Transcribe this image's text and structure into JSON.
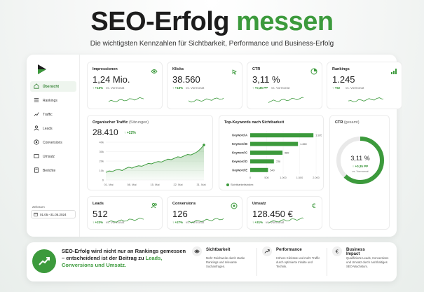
{
  "header": {
    "title_main": "SEO-Erfolg",
    "title_accent": "messen",
    "subtitle": "Die wichtigsten Kennzahlen für Sichtbarkeit, Performance und Business-Erfolg"
  },
  "colors": {
    "accent": "#3c9a3c",
    "text": "#1d1d1d"
  },
  "sidebar": {
    "items": [
      {
        "label": "Übersicht",
        "icon": "home-icon",
        "active": true
      },
      {
        "label": "Rankings",
        "icon": "list-icon",
        "active": false
      },
      {
        "label": "Traffic",
        "icon": "trend-icon",
        "active": false
      },
      {
        "label": "Leads",
        "icon": "user-icon",
        "active": false
      },
      {
        "label": "Conversions",
        "icon": "target-icon",
        "active": false
      },
      {
        "label": "Umsatz",
        "icon": "wallet-icon",
        "active": false
      },
      {
        "label": "Berichte",
        "icon": "document-icon",
        "active": false
      }
    ],
    "period_label": "Zeitraum",
    "period_value": "01.05.–31.05.2024"
  },
  "kpis": [
    {
      "label": "Impressionen",
      "value": "1,24 Mio.",
      "delta": "+15%",
      "vs": "vs. Vormonat",
      "icon": "eye-icon"
    },
    {
      "label": "Klicks",
      "value": "38.560",
      "delta": "+18%",
      "vs": "vs. Vormonat",
      "icon": "cursor-click-icon"
    },
    {
      "label": "CTR",
      "value": "3,11 %",
      "delta": "+0,35 PP",
      "vs": "vs. Vormonat",
      "icon": "pie-chart-icon"
    },
    {
      "label": "Rankings",
      "value": "1.245",
      "delta": "+92",
      "vs": "vs. Vormonat",
      "icon": "bar-chart-icon"
    }
  ],
  "traffic": {
    "title": "Organischer Traffic",
    "title_suffix": "(Sitzungen)",
    "value": "28.410",
    "delta": "+22%",
    "y_ticks": [
      "40k",
      "30k",
      "20k",
      "10k",
      "0"
    ],
    "x_ticks": [
      "01. Mai",
      "08. Mai",
      "15. Mai",
      "22. Mai",
      "31. Mai"
    ]
  },
  "keywords": {
    "title": "Top-Keywords nach Sichtbarkeit",
    "legend": "Sichtbarkeitsindex",
    "x_ticks": [
      "0",
      "500",
      "1.000",
      "1.500",
      "2.000"
    ]
  },
  "ctr_panel": {
    "title": "CTR",
    "title_suffix": "(gesamt)",
    "value": "3,11 %",
    "delta": "+0,35 PP",
    "vs": "vs. Vormonat",
    "ring_fraction": 0.62
  },
  "bottom_kpis": [
    {
      "label": "Leads",
      "value": "512",
      "delta": "+23%",
      "vs": "vs. Vormonat",
      "icon": "users-icon"
    },
    {
      "label": "Conversions",
      "value": "126",
      "delta": "+27%",
      "vs": "vs. Vormonat",
      "icon": "target-icon"
    },
    {
      "label": "Umsatz",
      "value": "128.450 €",
      "delta": "+31%",
      "vs": "vs. Vormonat",
      "icon": "euro-icon"
    }
  ],
  "summary": {
    "text_part1": "SEO-Erfolg wird nicht nur an Rankings gemessen – entscheidend ist der Beitrag zu ",
    "text_part2": "Leads, Conversions und Umsatz.",
    "features": [
      {
        "title": "Sichtbarkeit",
        "desc": "Mehr Reichweite durch starke Rankings und relevante Suchanfragen.",
        "icon": "eye-icon"
      },
      {
        "title": "Performance",
        "desc": "Höhere Klickrate und mehr Traffic durch optimierte Inhalte und Technik.",
        "icon": "trend-up-icon"
      },
      {
        "title": "Business Impact",
        "desc": "Qualifizierte Leads, Conversions und Umsatz durch nachhaltiges SEO-Wachstum.",
        "icon": "euro-icon"
      }
    ]
  },
  "chart_data": [
    {
      "type": "area",
      "title": "Organischer Traffic",
      "x": [
        1,
        2,
        3,
        4,
        5,
        6,
        7,
        8,
        9,
        10,
        11,
        12,
        13,
        14,
        15,
        16,
        17,
        18,
        19,
        20,
        21,
        22,
        23,
        24,
        25,
        26,
        27,
        28,
        29,
        30,
        31
      ],
      "values": [
        8000,
        9500,
        9000,
        10500,
        11000,
        10000,
        12000,
        13500,
        12500,
        14000,
        15000,
        14500,
        16000,
        17500,
        17000,
        18500,
        19500,
        19000,
        20500,
        22000,
        21500,
        23000,
        24500,
        24000,
        25500,
        27000,
        26500,
        28000,
        30000,
        33000,
        37000
      ],
      "ylim": [
        0,
        40000
      ],
      "color": "#3c9a3c"
    },
    {
      "type": "bar",
      "title": "Top-Keywords nach Sichtbarkeit",
      "categories": [
        "Keyword A",
        "Keyword B",
        "Keyword C",
        "Keyword D",
        "Keyword E"
      ],
      "values": [
        1920,
        1450,
        980,
        720,
        540
      ],
      "xlim": [
        0,
        2000
      ],
      "color": "#3c9a3c"
    }
  ]
}
